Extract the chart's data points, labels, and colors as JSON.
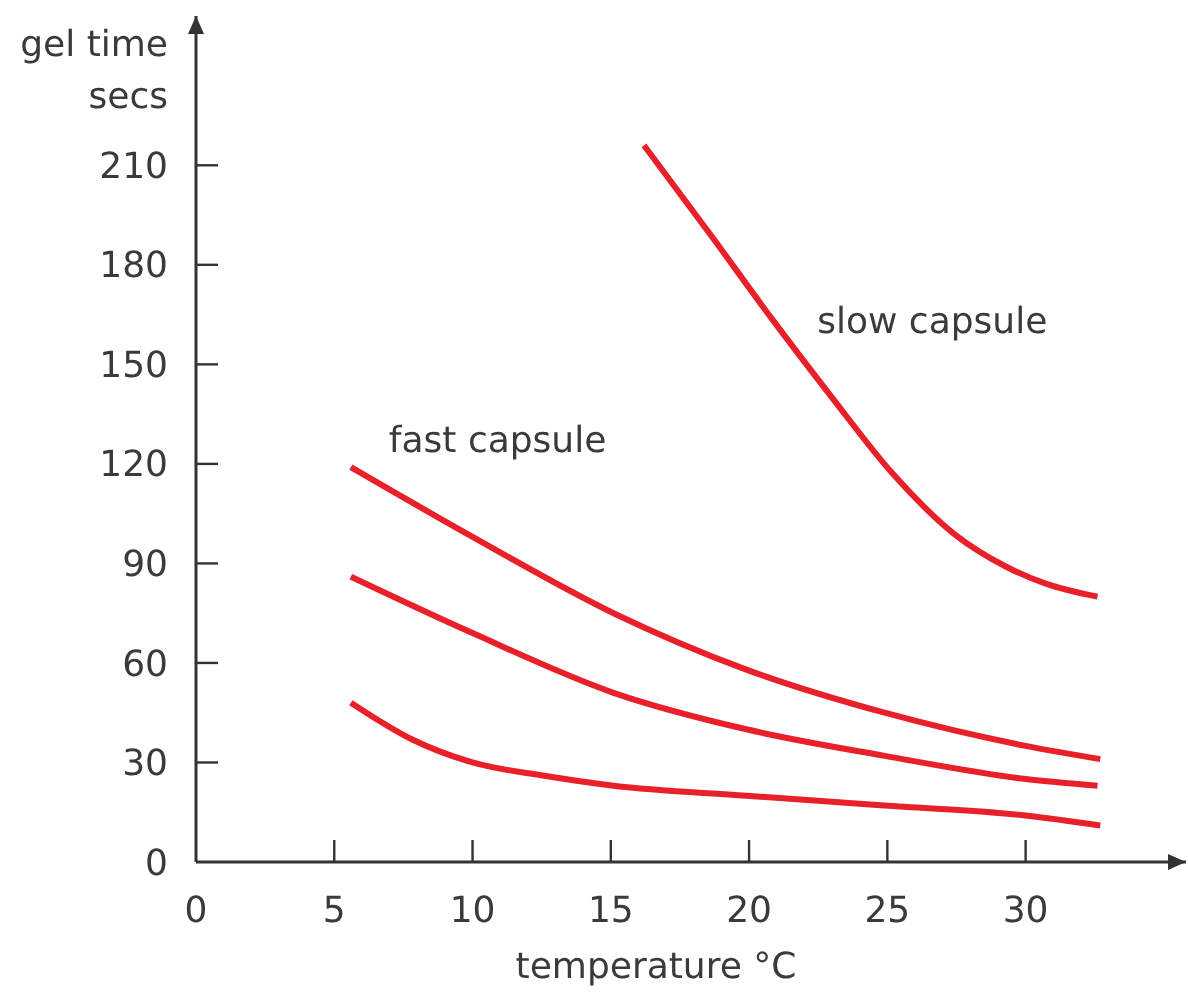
{
  "chart_data": {
    "type": "line",
    "xlabel": "temperature °C",
    "ylabel": "gel time\nsecs",
    "xlim": [
      0,
      35.8
    ],
    "ylim": [
      0,
      255
    ],
    "xticks": [
      0,
      5,
      10,
      15,
      20,
      25,
      30
    ],
    "yticks": [
      0,
      30,
      60,
      90,
      120,
      150,
      180,
      210
    ],
    "line_style": "solid",
    "series": [
      {
        "name": "slow capsule",
        "color": "#e8202a",
        "x": [
          16.2,
          18.7,
          20.8,
          23.0,
          25.2,
          27.4,
          29.3,
          30.7,
          32.6
        ],
        "values": [
          216,
          188,
          164,
          140,
          117,
          99,
          89,
          84,
          80
        ]
      },
      {
        "name": "fast capsule",
        "color": "#e8202a",
        "x": [
          5.6,
          10.0,
          15.1,
          19.9,
          24.9,
          30.0,
          32.7
        ],
        "values": [
          119,
          98,
          75,
          58,
          45,
          35,
          31
        ]
      },
      {
        "color": "#e8202a",
        "x": [
          5.6,
          10.0,
          15.1,
          19.9,
          24.9,
          30.0,
          32.6
        ],
        "values": [
          86,
          69,
          51,
          40,
          32,
          25,
          23
        ]
      },
      {
        "color": "#e8202a",
        "x": [
          5.6,
          7.8,
          10.0,
          12.6,
          15.1,
          19.9,
          24.9,
          30.0,
          32.7
        ],
        "values": [
          48,
          37,
          30,
          26,
          23,
          20,
          17,
          14,
          11
        ]
      }
    ]
  }
}
